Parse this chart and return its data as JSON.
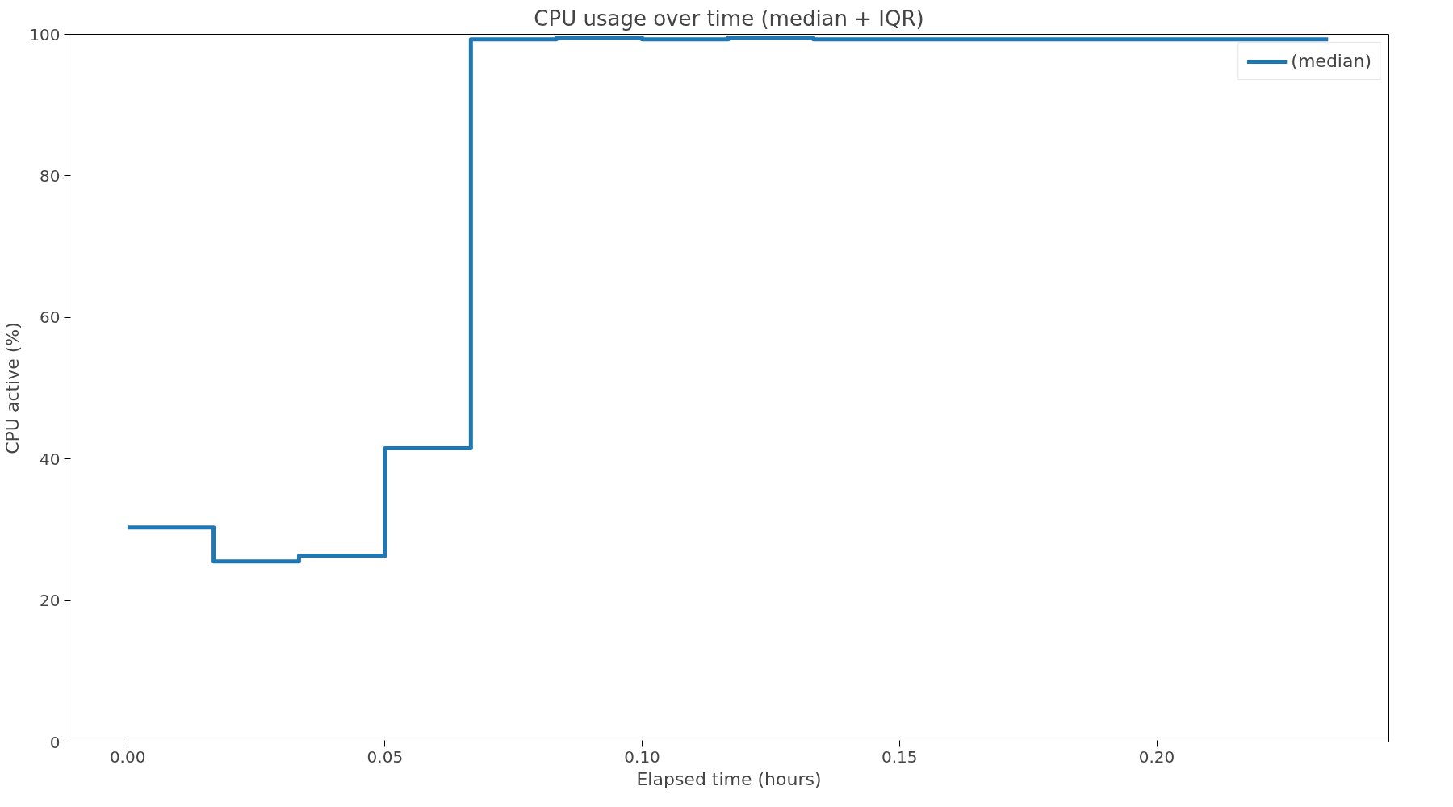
{
  "chart_data": {
    "type": "step",
    "title": "CPU usage over time (median + IQR)",
    "xlabel": "Elapsed time (hours)",
    "ylabel": "CPU active (%)",
    "x": [
      0,
      0.0167,
      0.0333,
      0.05,
      0.0667,
      0.0833,
      0.1,
      0.1167,
      0.1333,
      0.15,
      0.1667,
      0.1833,
      0.2,
      0.2167,
      0.2333
    ],
    "series": [
      {
        "name": "(median)",
        "color": "#1f77b4",
        "values": [
          30.3,
          25.5,
          26.3,
          41.5,
          99.3,
          99.5,
          99.3,
          99.5,
          99.3,
          99.3,
          99.3,
          99.3,
          99.3,
          99.3,
          99.3
        ]
      }
    ],
    "xlim": [
      -0.0114,
      0.2451
    ],
    "ylim": [
      0,
      100
    ],
    "xticks": [
      {
        "value": 0,
        "label": "0.00"
      },
      {
        "value": 0.05,
        "label": "0.05"
      },
      {
        "value": 0.1,
        "label": "0.10"
      },
      {
        "value": 0.15,
        "label": "0.15"
      },
      {
        "value": 0.2,
        "label": "0.20"
      }
    ],
    "yticks": [
      0,
      20,
      40,
      60,
      80,
      100
    ],
    "grid": false,
    "legend": "top right"
  }
}
